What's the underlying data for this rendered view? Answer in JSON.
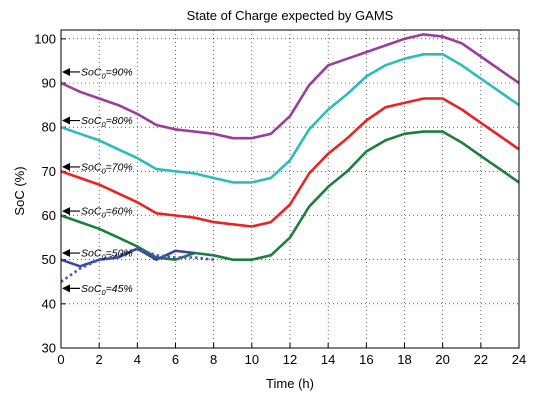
{
  "chart_data": {
    "type": "line",
    "title": "State of Charge expected by GAMS",
    "xlabel": "Time (h)",
    "ylabel": "SoC (%)",
    "xlim": [
      0,
      24
    ],
    "ylim": [
      30,
      102
    ],
    "x_ticks": [
      0,
      2,
      4,
      6,
      8,
      10,
      12,
      14,
      16,
      18,
      20,
      22,
      24
    ],
    "y_ticks": [
      30,
      40,
      50,
      60,
      70,
      80,
      90,
      100
    ],
    "grid": "dotted",
    "series": [
      {
        "color": "#9b3d9b",
        "style": "solid",
        "x": [
          0,
          1,
          2,
          3,
          4,
          5,
          6,
          7,
          8,
          9,
          10,
          11,
          12,
          13,
          14,
          15,
          16,
          17,
          18,
          19,
          20,
          21,
          22,
          23,
          24
        ],
        "values": [
          90,
          88,
          86.5,
          85,
          83,
          80.5,
          79.5,
          79,
          78.5,
          77.5,
          77.5,
          78.5,
          82.5,
          89.5,
          94,
          95.5,
          97,
          98.5,
          100,
          101,
          100.5,
          99,
          96,
          93,
          90
        ]
      },
      {
        "color": "#2cbcbc",
        "style": "solid",
        "x": [
          0,
          1,
          2,
          3,
          4,
          5,
          6,
          7,
          8,
          9,
          10,
          11,
          12,
          13,
          14,
          15,
          16,
          17,
          18,
          19,
          20,
          21,
          22,
          23,
          24
        ],
        "values": [
          80,
          78.5,
          77,
          75,
          73,
          70.5,
          70,
          69.5,
          68.5,
          67.5,
          67.5,
          68.5,
          72.5,
          79.5,
          84,
          87.5,
          91.5,
          94,
          95.5,
          96.5,
          96.5,
          94,
          91,
          88,
          85
        ]
      },
      {
        "color": "#e82424",
        "style": "solid",
        "x": [
          0,
          1,
          2,
          3,
          4,
          5,
          6,
          7,
          8,
          9,
          10,
          11,
          12,
          13,
          14,
          15,
          16,
          17,
          18,
          19,
          20,
          21,
          22,
          23,
          24
        ],
        "values": [
          70,
          68.5,
          67,
          65,
          63,
          60.5,
          60,
          59.5,
          58.5,
          58,
          57.5,
          58.5,
          62.5,
          69.5,
          74,
          77.5,
          81.5,
          84.5,
          85.5,
          86.5,
          86.5,
          84,
          81,
          78,
          75
        ]
      },
      {
        "color": "#1d7f3c",
        "style": "solid",
        "x": [
          0,
          1,
          2,
          3,
          4,
          5,
          6,
          7,
          8,
          9,
          10,
          11,
          12,
          13,
          14,
          15,
          16,
          17,
          18,
          19,
          20,
          21,
          22,
          23,
          24
        ],
        "values": [
          60,
          58.5,
          57,
          55,
          53,
          50.5,
          50,
          51.5,
          51,
          50,
          50,
          51,
          55,
          62,
          66.5,
          70,
          74.5,
          77,
          78.5,
          79,
          79,
          76.5,
          73.5,
          70.5,
          67.5
        ]
      },
      {
        "color": "#3b46a0",
        "style": "solid",
        "x": [
          0,
          1,
          2,
          3,
          4,
          5,
          6,
          7
        ],
        "values": [
          50,
          48.5,
          50,
          50.5,
          52.5,
          50,
          52,
          51.5
        ]
      },
      {
        "color": "#4a56b8",
        "style": "dotted",
        "x": [
          0,
          1,
          2,
          3,
          4,
          5,
          6,
          7,
          8
        ],
        "values": [
          45,
          48,
          50,
          51,
          52.5,
          51,
          50.5,
          50.5,
          50
        ]
      }
    ],
    "annotations": [
      {
        "text": "SoC",
        "sub": "0",
        "suffix": "=90%",
        "y": 92.5
      },
      {
        "text": "SoC",
        "sub": "0",
        "suffix": "=80%",
        "y": 81.5
      },
      {
        "text": "SoC",
        "sub": "0",
        "suffix": "=70%",
        "y": 71
      },
      {
        "text": "SoC",
        "sub": "0",
        "suffix": "=60%",
        "y": 61
      },
      {
        "text": "SoC",
        "sub": "0",
        "suffix": "=50%",
        "y": 51.5
      },
      {
        "text": "SoC",
        "sub": "0",
        "suffix": "=45%",
        "y": 43.5
      }
    ]
  }
}
